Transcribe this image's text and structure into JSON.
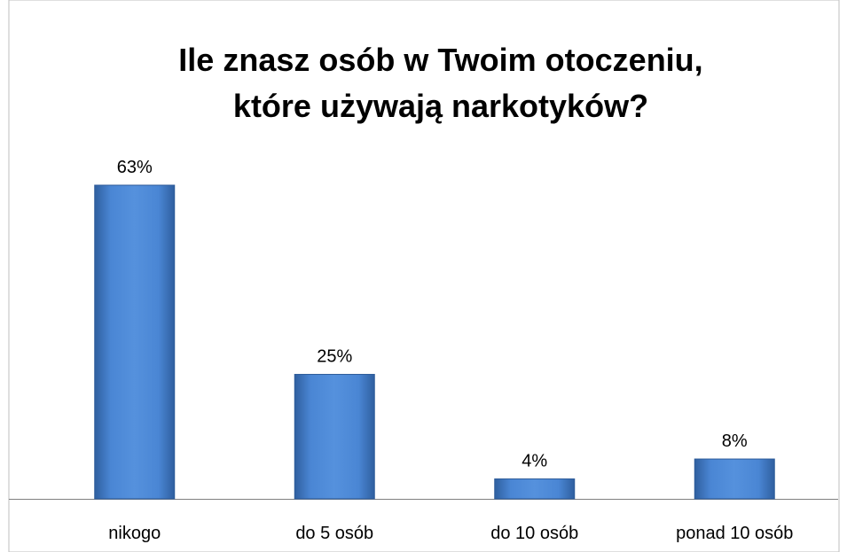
{
  "chart_data": {
    "type": "bar",
    "title": "Ile znasz osób w Twoim otoczeniu, które używają narkotyków?",
    "categories": [
      "nikogo",
      "do 5 osób",
      "do 10 osób",
      "ponad 10 osób"
    ],
    "values": [
      63,
      25,
      4,
      8
    ],
    "value_labels": [
      "63%",
      "25%",
      "4%",
      "8%"
    ],
    "color": "#3f75c0"
  }
}
